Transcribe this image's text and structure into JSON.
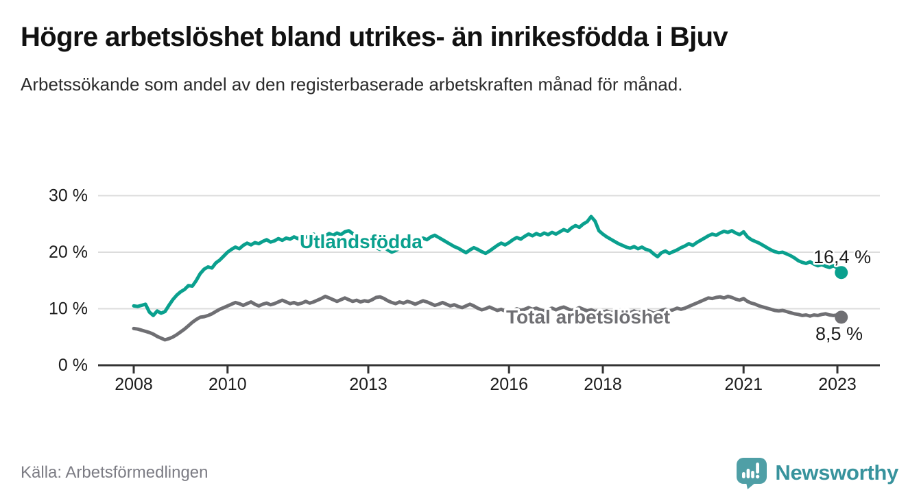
{
  "header": {
    "title": "Högre arbetslöshet bland utrikes- än inrikesfödda i Bjuv",
    "subtitle": "Arbetssökande som andel av den registerbaserade arbetskraften månad för månad."
  },
  "chart_data": {
    "type": "line",
    "title": "Högre arbetslöshet bland utrikes- än inrikesfödda i Bjuv",
    "subtitle": "Arbetssökande som andel av den registerbaserade arbetskraften månad för månad.",
    "unit": "%",
    "frequency": "monthly",
    "x_start": "2008-01",
    "x_end": "2023-02",
    "ylim": [
      0,
      32
    ],
    "grid": "horizontal",
    "legend": "inline-labels",
    "y_ticks": [
      {
        "value": 0,
        "label": "0 %"
      },
      {
        "value": 10,
        "label": "10 %"
      },
      {
        "value": 20,
        "label": "20 %"
      },
      {
        "value": 30,
        "label": "30 %"
      }
    ],
    "x_ticks": [
      {
        "year": 2008,
        "label": "2008"
      },
      {
        "year": 2010,
        "label": "2010"
      },
      {
        "year": 2013,
        "label": "2013"
      },
      {
        "year": 2016,
        "label": "2016"
      },
      {
        "year": 2018,
        "label": "2018"
      },
      {
        "year": 2021,
        "label": "2021"
      },
      {
        "year": 2023,
        "label": "2023"
      }
    ],
    "series": [
      {
        "name": "Utlandsfödda",
        "color": "#0aa08e",
        "end_value": 16.4,
        "end_label": "16,4 %",
        "values": [
          10.5,
          10.4,
          10.6,
          10.8,
          9.4,
          8.8,
          9.6,
          9.2,
          9.5,
          10.6,
          11.6,
          12.4,
          13.0,
          13.4,
          14.1,
          14.0,
          15.0,
          16.2,
          17.0,
          17.4,
          17.2,
          18.1,
          18.6,
          19.3,
          20.0,
          20.5,
          20.9,
          20.6,
          21.2,
          21.6,
          21.3,
          21.7,
          21.5,
          21.9,
          22.2,
          21.8,
          22.0,
          22.4,
          22.1,
          22.5,
          22.3,
          22.7,
          22.4,
          22.8,
          22.6,
          22.9,
          23.2,
          22.8,
          22.5,
          22.9,
          23.3,
          23.0,
          23.4,
          23.1,
          23.6,
          23.8,
          23.3,
          22.9,
          22.4,
          22.0,
          21.6,
          21.2,
          20.8,
          20.5,
          20.9,
          20.4,
          20.0,
          20.3,
          20.7,
          21.1,
          21.6,
          22.0,
          21.7,
          22.1,
          22.5,
          22.2,
          22.7,
          23.0,
          22.6,
          22.2,
          21.8,
          21.4,
          21.0,
          20.7,
          20.3,
          19.9,
          20.4,
          20.8,
          20.5,
          20.1,
          19.8,
          20.2,
          20.7,
          21.2,
          21.6,
          21.3,
          21.7,
          22.2,
          22.6,
          22.3,
          22.8,
          23.2,
          22.9,
          23.3,
          23.0,
          23.4,
          23.1,
          23.5,
          23.2,
          23.6,
          24.0,
          23.7,
          24.3,
          24.7,
          24.4,
          25.0,
          25.4,
          26.3,
          25.5,
          23.8,
          23.2,
          22.7,
          22.3,
          21.9,
          21.5,
          21.2,
          20.9,
          20.7,
          21.0,
          20.6,
          20.9,
          20.5,
          20.3,
          19.7,
          19.2,
          19.9,
          20.2,
          19.8,
          20.1,
          20.4,
          20.8,
          21.1,
          21.5,
          21.2,
          21.7,
          22.1,
          22.5,
          22.9,
          23.2,
          23.0,
          23.4,
          23.7,
          23.5,
          23.8,
          23.4,
          23.1,
          23.6,
          22.7,
          22.2,
          21.9,
          21.6,
          21.2,
          20.8,
          20.4,
          20.1,
          19.9,
          20.0,
          19.7,
          19.4,
          19.0,
          18.5,
          18.2,
          18.0,
          18.3,
          17.9,
          17.6,
          17.8,
          17.5,
          17.3,
          17.6,
          17.2,
          16.4
        ]
      },
      {
        "name": "Total arbetslöshet",
        "color": "#6f6f73",
        "end_value": 8.5,
        "end_label": "8,5 %",
        "values": [
          6.5,
          6.4,
          6.2,
          6.0,
          5.8,
          5.5,
          5.1,
          4.8,
          4.5,
          4.7,
          5.0,
          5.4,
          5.9,
          6.4,
          7.0,
          7.6,
          8.1,
          8.5,
          8.6,
          8.8,
          9.1,
          9.5,
          9.9,
          10.2,
          10.5,
          10.8,
          11.1,
          10.9,
          10.6,
          10.9,
          11.2,
          10.8,
          10.5,
          10.8,
          11.0,
          10.7,
          10.9,
          11.2,
          11.5,
          11.2,
          10.9,
          11.1,
          10.8,
          11.0,
          11.3,
          11.0,
          11.2,
          11.5,
          11.8,
          12.2,
          11.9,
          11.6,
          11.3,
          11.6,
          11.9,
          11.6,
          11.3,
          11.5,
          11.2,
          11.4,
          11.3,
          11.6,
          12.0,
          12.1,
          11.8,
          11.4,
          11.1,
          10.9,
          11.2,
          11.0,
          11.3,
          11.1,
          10.8,
          11.1,
          11.4,
          11.2,
          10.9,
          10.6,
          10.8,
          11.1,
          10.8,
          10.5,
          10.7,
          10.4,
          10.2,
          10.5,
          10.8,
          10.5,
          10.1,
          9.8,
          10.0,
          10.3,
          10.0,
          9.7,
          9.9,
          9.6,
          9.4,
          9.7,
          10.0,
          9.7,
          9.9,
          10.2,
          9.9,
          10.1,
          9.8,
          9.6,
          9.9,
          10.1,
          9.8,
          10.1,
          10.3,
          10.0,
          9.7,
          9.9,
          10.2,
          9.9,
          9.6,
          9.8,
          9.5,
          9.7,
          9.4,
          9.6,
          9.3,
          9.5,
          9.2,
          9.4,
          9.1,
          9.3,
          9.6,
          9.3,
          9.5,
          9.8,
          9.5,
          9.2,
          9.4,
          9.7,
          9.9,
          9.6,
          9.8,
          10.1,
          9.9,
          10.1,
          10.4,
          10.7,
          11.0,
          11.3,
          11.6,
          11.9,
          11.8,
          12.0,
          12.1,
          11.9,
          12.2,
          12.0,
          11.7,
          11.5,
          11.8,
          11.3,
          11.0,
          10.8,
          10.5,
          10.3,
          10.1,
          9.9,
          9.7,
          9.6,
          9.7,
          9.5,
          9.3,
          9.1,
          9.0,
          8.8,
          8.9,
          8.7,
          8.9,
          8.8,
          9.0,
          9.1,
          8.9,
          8.8,
          8.9,
          8.5
        ]
      }
    ]
  },
  "footer": {
    "source": "Källa: Arbetsförmedlingen",
    "logo_text": "Newsworthy",
    "logo_icon": "bar-chart-speech-bubble-icon"
  },
  "colors": {
    "series_teal": "#0aa08e",
    "series_gray": "#6f6f73",
    "logo_bubble": "#4f9fa6",
    "logo_text": "#38939d",
    "grid": "#dcdcdc",
    "axis": "#333333"
  }
}
